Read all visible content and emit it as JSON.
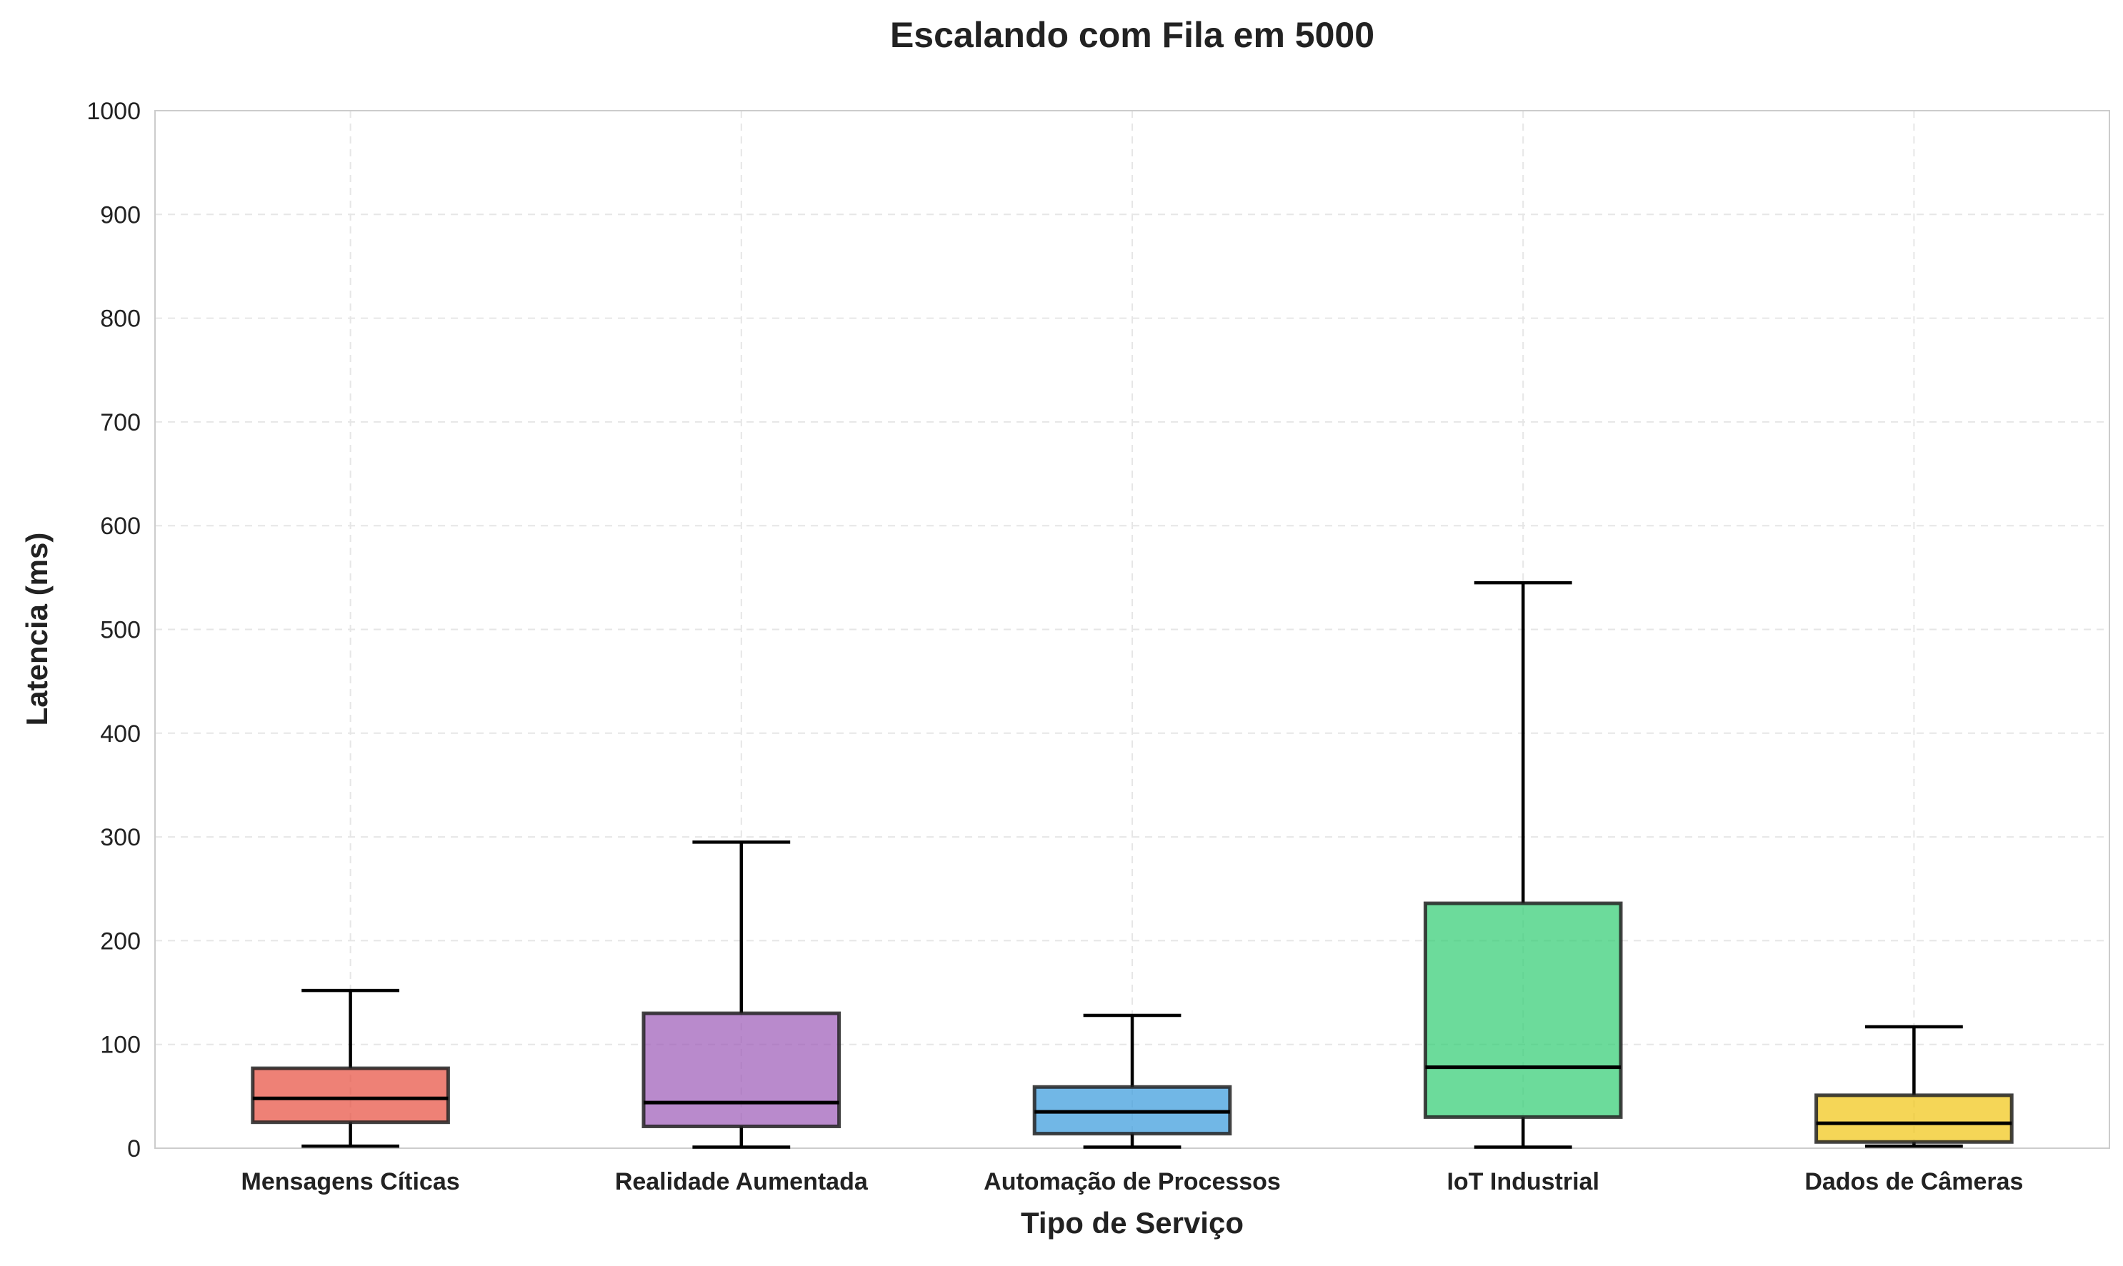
{
  "chart_data": {
    "type": "box",
    "title": "Escalando com Fila em 5000",
    "xlabel": "Tipo de Serviço",
    "ylabel": "Latencia (ms)",
    "ylim": [
      0,
      1000
    ],
    "yticks": [
      "0",
      "100",
      "200",
      "300",
      "400",
      "500",
      "600",
      "700",
      "800",
      "900",
      "1000"
    ],
    "grid": true,
    "categories": [
      "Mensagens Cíticas",
      "Realidade Aumentada",
      "Automação de Processos",
      "IoT Industrial",
      "Dados de Câmeras"
    ],
    "boxes": [
      {
        "whisker_low": 2,
        "q1": 25,
        "median": 48,
        "q3": 77,
        "whisker_high": 152,
        "color": "#e74c3c"
      },
      {
        "whisker_low": 1,
        "q1": 21,
        "median": 44,
        "q3": 130,
        "whisker_high": 295,
        "color": "#9b59b6"
      },
      {
        "whisker_low": 1,
        "q1": 14,
        "median": 35,
        "q3": 59,
        "whisker_high": 128,
        "color": "#3498db"
      },
      {
        "whisker_low": 1,
        "q1": 30,
        "median": 78,
        "q3": 236,
        "whisker_high": 545,
        "color": "#2ecc71"
      },
      {
        "whisker_low": 2,
        "q1": 6,
        "median": 24,
        "q3": 51,
        "whisker_high": 117,
        "color": "#f1c40f"
      }
    ]
  }
}
